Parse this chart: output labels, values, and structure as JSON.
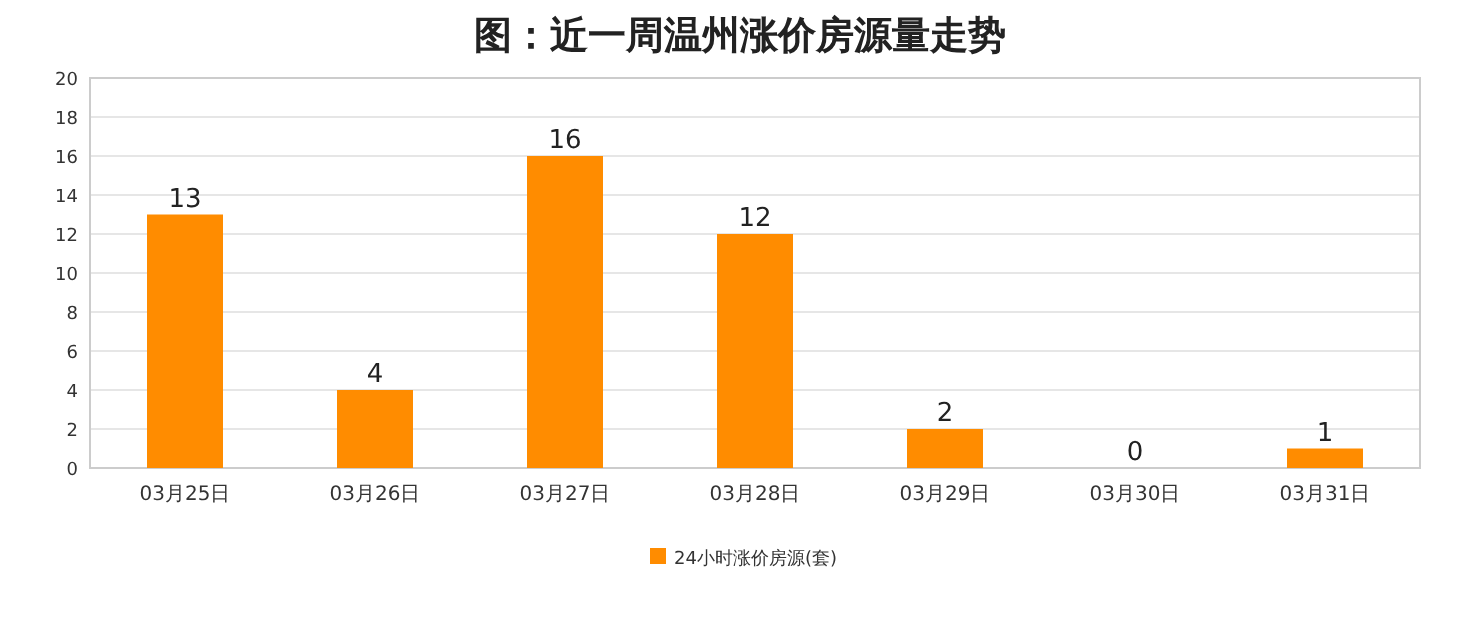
{
  "chart_data": {
    "type": "bar",
    "title": "图：近一周温州涨价房源量走势",
    "categories": [
      "03月25日",
      "03月26日",
      "03月27日",
      "03月28日",
      "03月29日",
      "03月30日",
      "03月31日"
    ],
    "series": [
      {
        "name": "24小时涨价房源(套)",
        "color": "#ff8c00",
        "values": [
          13,
          4,
          16,
          12,
          2,
          0,
          1
        ]
      }
    ],
    "ylim": [
      0,
      20
    ],
    "yticks": [
      0,
      2,
      4,
      6,
      8,
      10,
      12,
      14,
      16,
      18,
      20
    ],
    "grid": "y",
    "legend": "bottom",
    "data_labels": true
  }
}
